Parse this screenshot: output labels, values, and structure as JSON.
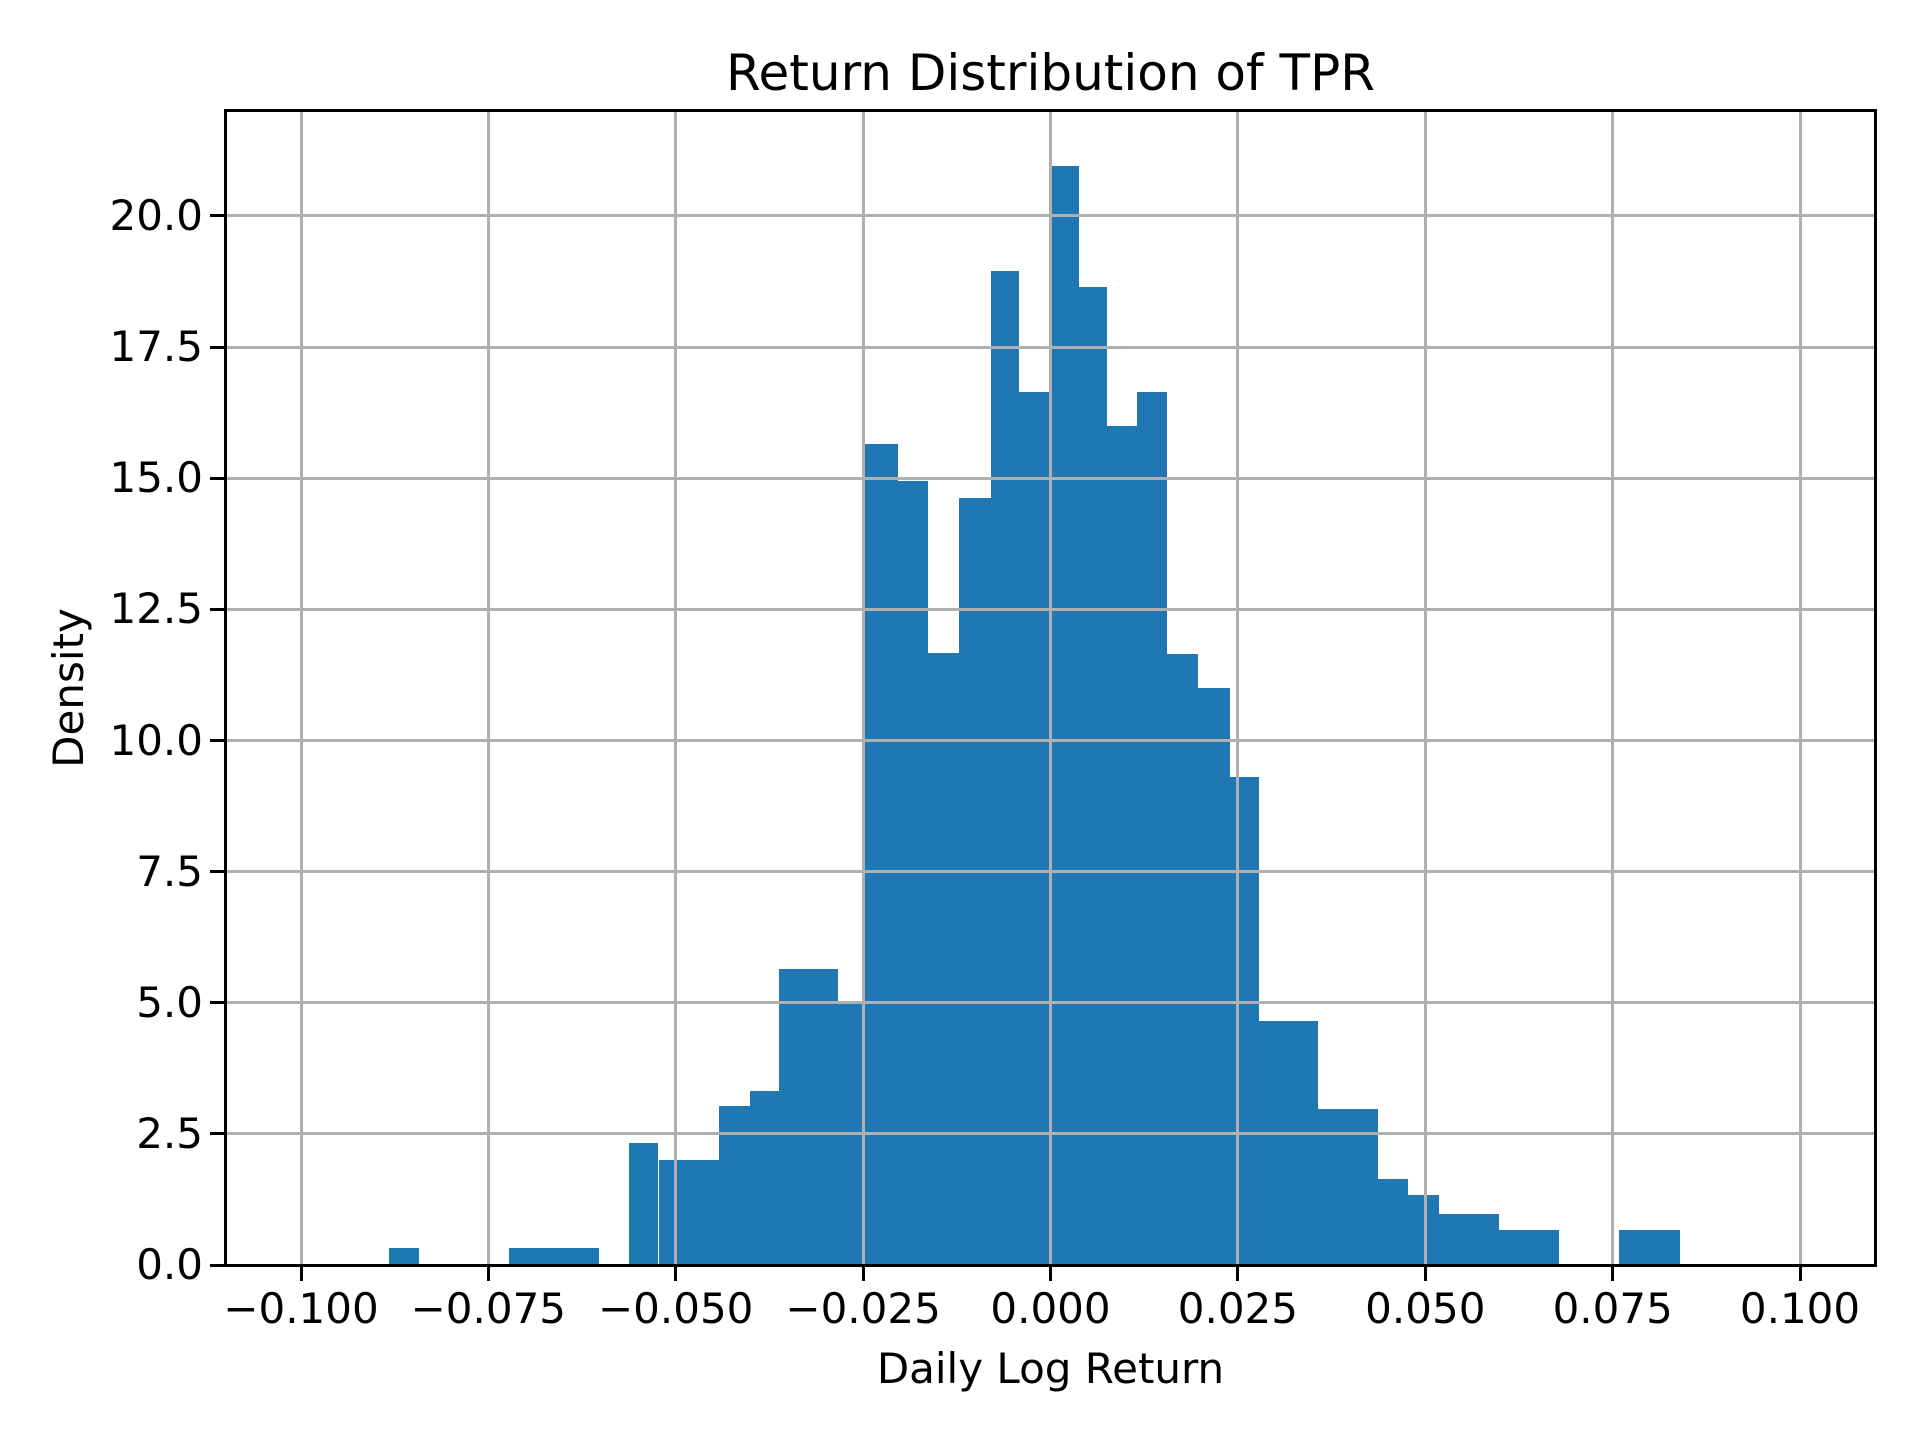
{
  "title": "Return Distribution of TPR",
  "x_axis": {
    "label": "Daily Log Return",
    "tick_values": [
      -0.1,
      -0.075,
      -0.05,
      -0.025,
      0.0,
      0.025,
      0.05,
      0.075,
      0.1
    ],
    "tick_labels": [
      "−0.100",
      "−0.075",
      "−0.050",
      "−0.025",
      "0.000",
      "0.025",
      "0.050",
      "0.075",
      "0.100"
    ]
  },
  "y_axis": {
    "label": "Density",
    "tick_values": [
      0.0,
      2.5,
      5.0,
      7.5,
      10.0,
      12.5,
      15.0,
      17.5,
      20.0
    ],
    "tick_labels": [
      "0.0",
      "2.5",
      "5.0",
      "7.5",
      "10.0",
      "12.5",
      "15.0",
      "17.5",
      "20.0"
    ]
  },
  "colors": {
    "bar": "#1f77b4",
    "grid": "#b0b0b0",
    "axis": "#000000",
    "text": "#000000",
    "background": "#ffffff"
  },
  "chart_data": {
    "type": "bar",
    "subtype": "histogram",
    "title": "Return Distribution of TPR",
    "xlabel": "Daily Log Return",
    "ylabel": "Density",
    "xlim": [
      -0.11,
      0.11
    ],
    "ylim": [
      0,
      22
    ],
    "grid": true,
    "legend": false,
    "bars": [
      {
        "x0": -0.0883,
        "x1": -0.0842,
        "h": 0.33
      },
      {
        "x0": -0.0722,
        "x1": -0.0602,
        "h": 0.33
      },
      {
        "x0": -0.0562,
        "x1": -0.0523,
        "h": 2.33
      },
      {
        "x0": -0.0523,
        "x1": -0.0442,
        "h": 2.0
      },
      {
        "x0": -0.0442,
        "x1": -0.0401,
        "h": 3.03
      },
      {
        "x0": -0.0401,
        "x1": -0.0362,
        "h": 3.32
      },
      {
        "x0": -0.0362,
        "x1": -0.0283,
        "h": 5.65
      },
      {
        "x0": -0.0283,
        "x1": -0.025,
        "h": 5.0
      },
      {
        "x0": -0.025,
        "x1": -0.0204,
        "h": 15.65
      },
      {
        "x0": -0.0204,
        "x1": -0.0164,
        "h": 14.95
      },
      {
        "x0": -0.0164,
        "x1": -0.0122,
        "h": 11.67
      },
      {
        "x0": -0.0122,
        "x1": -0.0079,
        "h": 14.63
      },
      {
        "x0": -0.0079,
        "x1": -0.0042,
        "h": 18.95
      },
      {
        "x0": -0.0042,
        "x1": 0.0002,
        "h": 16.65
      },
      {
        "x0": 0.0002,
        "x1": 0.0038,
        "h": 20.95
      },
      {
        "x0": 0.0038,
        "x1": 0.0075,
        "h": 18.65
      },
      {
        "x0": 0.0075,
        "x1": 0.0116,
        "h": 16.0
      },
      {
        "x0": 0.0116,
        "x1": 0.0156,
        "h": 16.65
      },
      {
        "x0": 0.0156,
        "x1": 0.0197,
        "h": 11.65
      },
      {
        "x0": 0.0197,
        "x1": 0.0239,
        "h": 11.0
      },
      {
        "x0": 0.0239,
        "x1": 0.0278,
        "h": 9.3
      },
      {
        "x0": 0.0278,
        "x1": 0.0357,
        "h": 4.66
      },
      {
        "x0": 0.0357,
        "x1": 0.0437,
        "h": 2.98
      },
      {
        "x0": 0.0437,
        "x1": 0.0477,
        "h": 1.64
      },
      {
        "x0": 0.0477,
        "x1": 0.0518,
        "h": 1.34
      },
      {
        "x0": 0.0518,
        "x1": 0.0598,
        "h": 0.98
      },
      {
        "x0": 0.0598,
        "x1": 0.0678,
        "h": 0.67
      },
      {
        "x0": 0.0758,
        "x1": 0.084,
        "h": 0.67
      }
    ]
  }
}
